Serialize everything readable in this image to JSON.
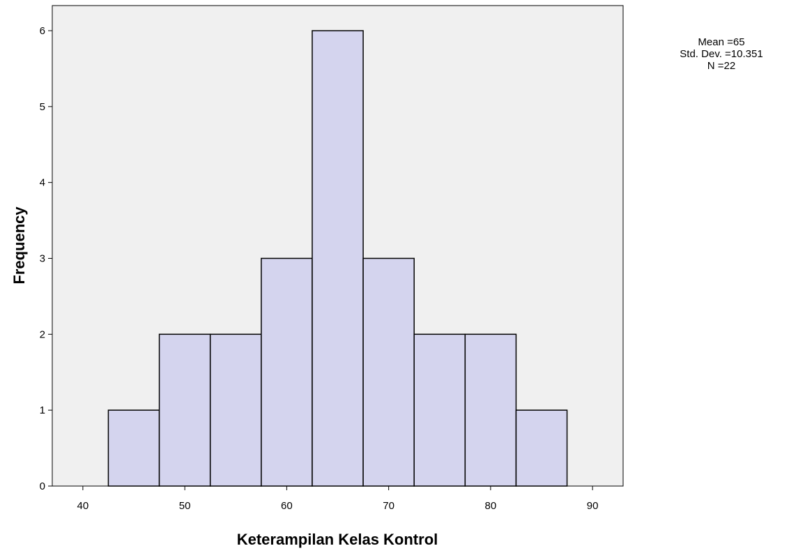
{
  "chart_data": {
    "type": "bar",
    "subtype": "histogram",
    "xlabel": "Keterampilan Kelas Kontrol",
    "ylabel": "Frequency",
    "xlim": [
      37,
      93
    ],
    "ylim": [
      0,
      6.2
    ],
    "x_ticks": [
      40,
      50,
      60,
      70,
      80,
      90
    ],
    "y_ticks": [
      0,
      1,
      2,
      3,
      4,
      5,
      6
    ],
    "bin_width": 5,
    "bins": [
      {
        "start": 42.5,
        "end": 47.5,
        "value": 1
      },
      {
        "start": 47.5,
        "end": 52.5,
        "value": 2
      },
      {
        "start": 52.5,
        "end": 57.5,
        "value": 2
      },
      {
        "start": 57.5,
        "end": 62.5,
        "value": 3
      },
      {
        "start": 62.5,
        "end": 67.5,
        "value": 6
      },
      {
        "start": 67.5,
        "end": 72.5,
        "value": 3
      },
      {
        "start": 72.5,
        "end": 77.5,
        "value": 2
      },
      {
        "start": 77.5,
        "end": 82.5,
        "value": 2
      },
      {
        "start": 82.5,
        "end": 87.5,
        "value": 1
      }
    ],
    "grid": false,
    "colors": {
      "plot_background": "#f0f0f0",
      "bar_fill": "#d4d4ee",
      "bar_stroke": "#000000"
    }
  },
  "stats": {
    "mean": "Mean =65",
    "std_dev": "Std. Dev. =10.351",
    "n": "N =22"
  }
}
